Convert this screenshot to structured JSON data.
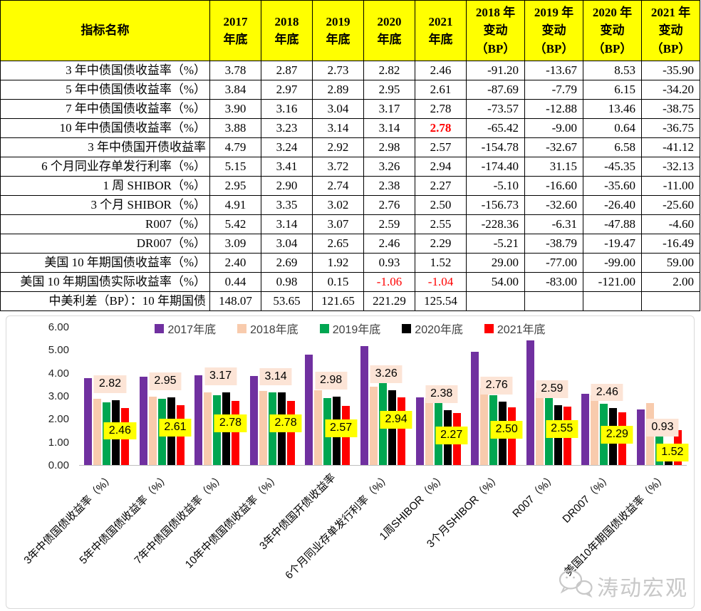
{
  "colors": {
    "header_bg": "#FFFF00",
    "highlight_red": "#FF0000",
    "axis_line": "#BFBFBF",
    "chart_border": "#D9D9D9",
    "watermark_gray": "#C8C8C8"
  },
  "table": {
    "name_header": "指标名称",
    "year_headers": [
      "2017\n年底",
      "2018\n年底",
      "2019\n年底",
      "2020\n年底",
      "2021\n年底"
    ],
    "change_headers": [
      "2018 年\n变动\n（BP）",
      "2019 年\n变动\n（BP）",
      "2020 年\n变动\n（BP）",
      "2021 年\n变动\n（BP）"
    ],
    "rows": [
      {
        "name": "3 年中债国债收益率（%）",
        "values": [
          "3.78",
          "2.87",
          "2.73",
          "2.82",
          "2.46"
        ],
        "changes": [
          "-91.20",
          "-13.67",
          "8.53",
          "-35.90"
        ]
      },
      {
        "name": "5 年中债国债收益率（%）",
        "values": [
          "3.84",
          "2.97",
          "2.89",
          "2.95",
          "2.61"
        ],
        "changes": [
          "-87.69",
          "-7.79",
          "6.15",
          "-34.20"
        ]
      },
      {
        "name": "7 年中债国债收益率（%）",
        "values": [
          "3.90",
          "3.16",
          "3.04",
          "3.17",
          "2.78"
        ],
        "changes": [
          "-73.57",
          "-12.88",
          "13.46",
          "-38.75"
        ]
      },
      {
        "name": "10 年中债国债收益率（%）",
        "values": [
          "3.88",
          "3.23",
          "3.14",
          "3.14",
          "2.78"
        ],
        "changes": [
          "-65.42",
          "-9.00",
          "0.64",
          "-36.75"
        ],
        "red_bold": [
          4
        ]
      },
      {
        "name": "3 年中债国开债收益率",
        "values": [
          "4.79",
          "3.24",
          "2.92",
          "2.98",
          "2.57"
        ],
        "changes": [
          "-154.78",
          "-32.67",
          "6.58",
          "-41.12"
        ]
      },
      {
        "name": "6 个月同业存单发行利率（%）",
        "values": [
          "5.15",
          "3.41",
          "3.72",
          "3.26",
          "2.94"
        ],
        "changes": [
          "-174.40",
          "31.15",
          "-45.35",
          "-32.13"
        ]
      },
      {
        "name": "1 周 SHIBOR（%）",
        "values": [
          "2.95",
          "2.90",
          "2.74",
          "2.38",
          "2.27"
        ],
        "changes": [
          "-5.10",
          "-16.60",
          "-35.60",
          "-11.00"
        ]
      },
      {
        "name": "3 个月 SHIBOR（%）",
        "values": [
          "4.91",
          "3.35",
          "3.02",
          "2.76",
          "2.50"
        ],
        "changes": [
          "-156.73",
          "-32.60",
          "-26.40",
          "-25.60"
        ]
      },
      {
        "name": "R007（%）",
        "values": [
          "5.42",
          "3.14",
          "3.07",
          "2.59",
          "2.55"
        ],
        "changes": [
          "-228.36",
          "-6.31",
          "-47.88",
          "-4.60"
        ]
      },
      {
        "name": "DR007（%）",
        "values": [
          "3.09",
          "3.04",
          "2.65",
          "2.46",
          "2.29"
        ],
        "changes": [
          "-5.21",
          "-38.79",
          "-19.47",
          "-16.49"
        ]
      },
      {
        "name": "美国 10 年期国债收益率（%）",
        "values": [
          "2.40",
          "2.69",
          "1.92",
          "0.93",
          "1.52"
        ],
        "changes": [
          "29.00",
          "-77.00",
          "-99.00",
          "59.00"
        ]
      },
      {
        "name": "美国 10 年期国债实际收益率（%）",
        "values": [
          "0.44",
          "0.98",
          "0.15",
          "-1.06",
          "-1.04"
        ],
        "changes": [
          "54.00",
          "-83.00",
          "-121.00",
          "2.00"
        ],
        "red": [
          3,
          4
        ]
      },
      {
        "name": "中美利差（BP）：10 年期国债",
        "values": [
          "148.07",
          "53.65",
          "121.65",
          "221.29",
          "125.54"
        ],
        "changes": [
          "",
          "",
          "",
          ""
        ]
      }
    ]
  },
  "chart_data": {
    "type": "bar",
    "title": "",
    "xlabel": "",
    "ylabel": "",
    "ylim": [
      0,
      6
    ],
    "yticks": [
      "6.00",
      "5.00",
      "4.00",
      "3.00",
      "2.00",
      "1.00",
      "0.00"
    ],
    "grid": false,
    "legend_position": "top",
    "categories": [
      "3年中债国债收益率（%）",
      "5年中债国债收益率（%）",
      "7年中债国债收益率（%）",
      "10年中债国债收益率（%）",
      "3年中债国开债收益率",
      "6个月同业存单发行利率（%）",
      "1周SHIBOR（%）",
      "3个月SHIBOR（%）",
      "R007（%）",
      "DR007（%）",
      "美国10年期国债收益率（%）"
    ],
    "series": [
      {
        "name": "2017年底",
        "color": "#7030A0",
        "values": [
          3.78,
          3.84,
          3.9,
          3.88,
          4.79,
          5.15,
          2.95,
          4.91,
          5.42,
          3.09,
          2.4
        ]
      },
      {
        "name": "2018年底",
        "color": "#F8CBAD",
        "values": [
          2.87,
          2.97,
          3.16,
          3.23,
          3.24,
          3.41,
          2.9,
          3.35,
          3.14,
          3.04,
          2.69
        ]
      },
      {
        "name": "2019年底",
        "color": "#00A651",
        "values": [
          2.73,
          2.89,
          3.04,
          3.14,
          2.92,
          3.72,
          2.74,
          3.02,
          3.07,
          2.65,
          1.92
        ]
      },
      {
        "name": "2020年底",
        "color": "#000000",
        "values": [
          2.82,
          2.95,
          3.17,
          3.14,
          2.98,
          3.26,
          2.38,
          2.76,
          2.59,
          2.46,
          0.93
        ]
      },
      {
        "name": "2021年底",
        "color": "#FF0000",
        "values": [
          2.46,
          2.61,
          2.78,
          2.78,
          2.57,
          2.94,
          2.27,
          2.5,
          2.55,
          2.29,
          1.52
        ]
      }
    ],
    "callouts": {
      "labels_2020": [
        "2.82",
        "2.95",
        "3.17",
        "3.14",
        "2.98",
        "3.26",
        "2.38",
        "2.76",
        "2.59",
        "2.46",
        "0.93"
      ],
      "labels_2020_bg": "#FCE4D6",
      "labels_2021": [
        "2.46",
        "2.61",
        "2.78",
        "2.78",
        "2.57",
        "2.94",
        "2.27",
        "2.50",
        "2.55",
        "2.29",
        "1.52"
      ],
      "labels_2021_bg": "#FFFF00"
    }
  },
  "watermark": {
    "text": "涛动宏观"
  }
}
